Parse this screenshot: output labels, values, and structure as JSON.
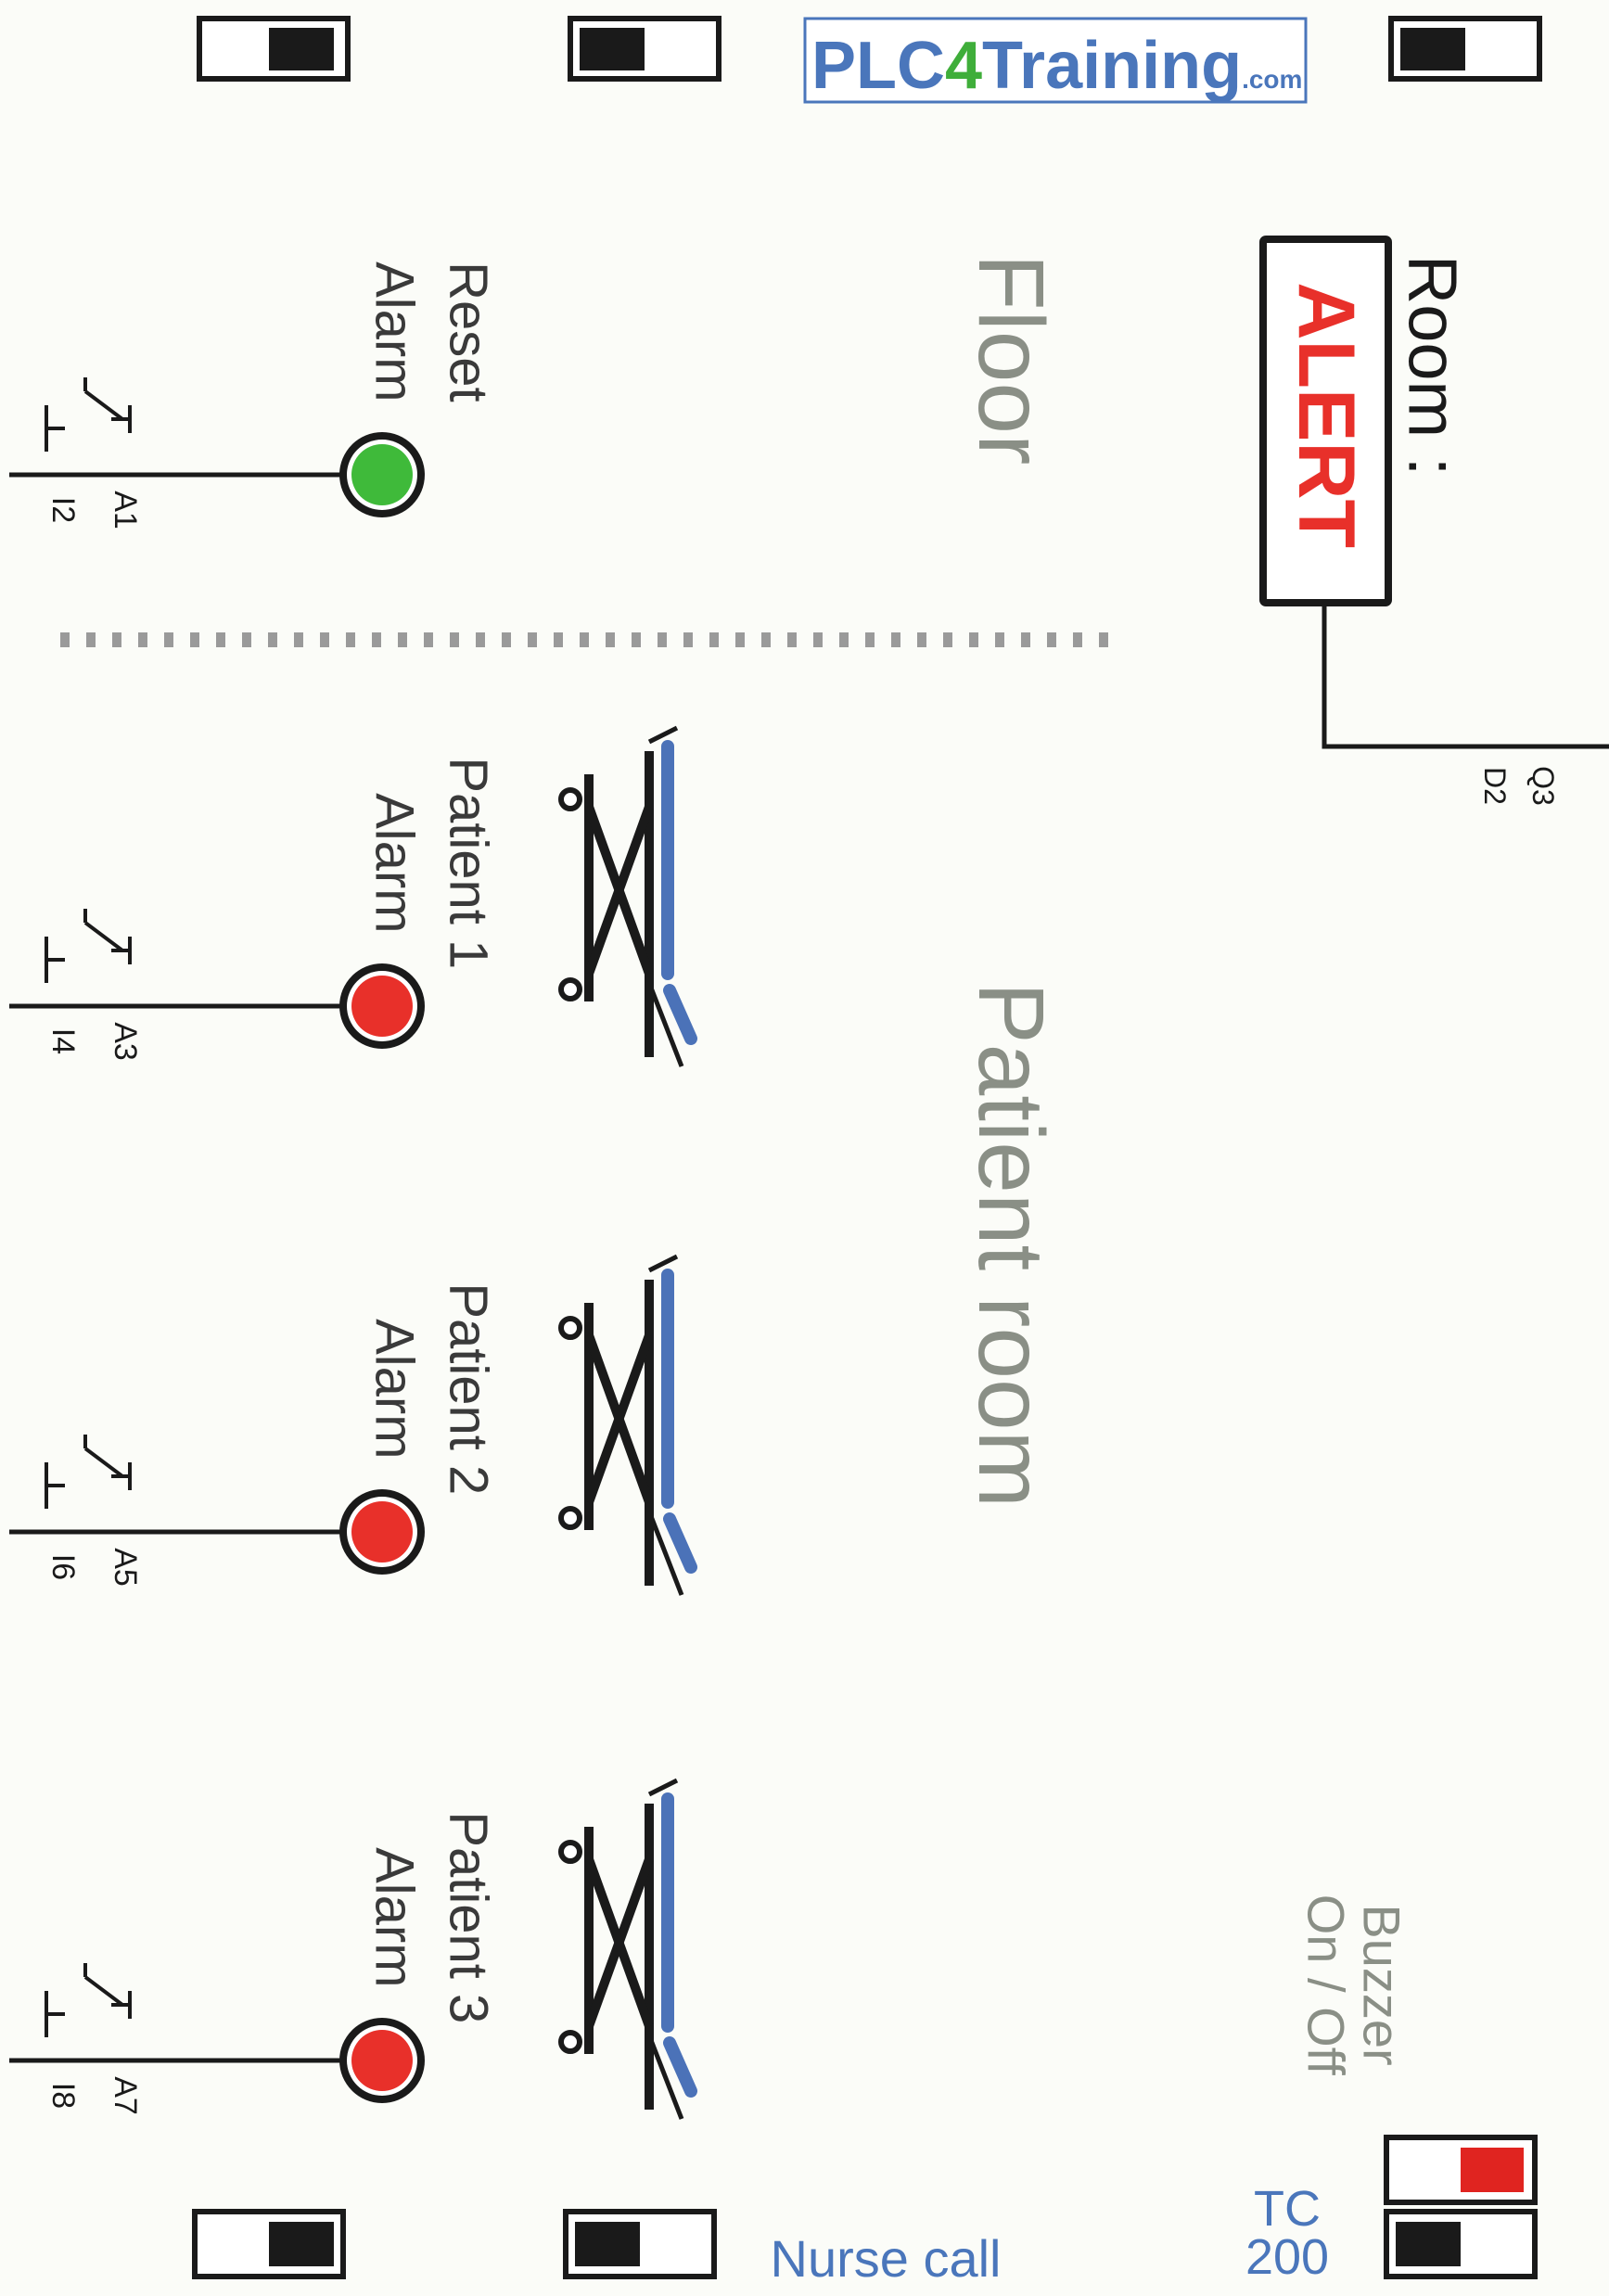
{
  "logo": {
    "text_plc": "PLC",
    "text_4": "4",
    "text_training": "Training",
    "text_com": ".com"
  },
  "sections": {
    "floor": "Floor",
    "patient_room": "Patient room"
  },
  "room_indicator": {
    "label": "Room :",
    "alert": "ALERT",
    "output": "Q3",
    "terminal": "D2"
  },
  "buttons": [
    {
      "id": "reset",
      "line1": "Reset",
      "line2": "Alarm",
      "terminal": "A1",
      "input": "I2",
      "lamp_color": "#3fba3a"
    },
    {
      "id": "patient1",
      "line1": "Patient 1",
      "line2": "Alarm",
      "terminal": "A3",
      "input": "I4",
      "lamp_color": "#e8302a"
    },
    {
      "id": "patient2",
      "line1": "Patient 2",
      "line2": "Alarm",
      "terminal": "A5",
      "input": "I6",
      "lamp_color": "#e8302a"
    },
    {
      "id": "patient3",
      "line1": "Patient 3",
      "line2": "Alarm",
      "terminal": "A7",
      "input": "I8",
      "lamp_color": "#e8302a"
    }
  ],
  "buzzer": {
    "line1": "Buzzer",
    "line2": "On / Off",
    "state": "on",
    "color": "#e02420"
  },
  "footer": {
    "nurse_call": "Nurse call",
    "model_line1": "TC",
    "model_line2": "200"
  },
  "colors": {
    "logo_blue": "#4a76bb",
    "logo_green": "#3fae3a",
    "label_gray": "#8a8f86",
    "bed_blue": "#4b72b8",
    "alert_red": "#e8302a"
  }
}
